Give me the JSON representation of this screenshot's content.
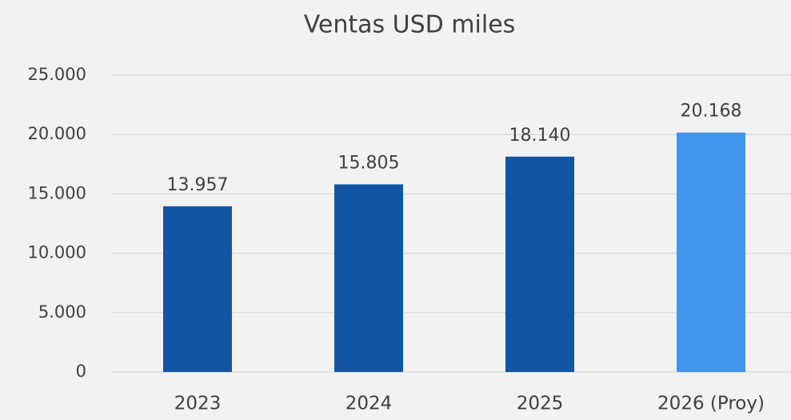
{
  "chart_data": {
    "type": "bar",
    "title": "Ventas USD miles",
    "categories": [
      "2023",
      "2024",
      "2025",
      "2026 (Proy)"
    ],
    "values": [
      13957,
      15805,
      18140,
      20168
    ],
    "value_labels": [
      "13.957",
      "15.805",
      "18.140",
      "20.168"
    ],
    "colors": [
      "#1255a3",
      "#1255a3",
      "#1255a3",
      "#4195ec"
    ],
    "ylim": [
      0,
      25000
    ],
    "yticks": [
      0,
      {
        "value": 5000,
        "label": "5.000"
      },
      {
        "value": 10000,
        "label": "10.000"
      },
      {
        "value": 15000,
        "label": "15.000"
      },
      {
        "value": 20000,
        "label": "20.000"
      },
      {
        "value": 25000,
        "label": "25.000"
      }
    ],
    "grid": true
  }
}
